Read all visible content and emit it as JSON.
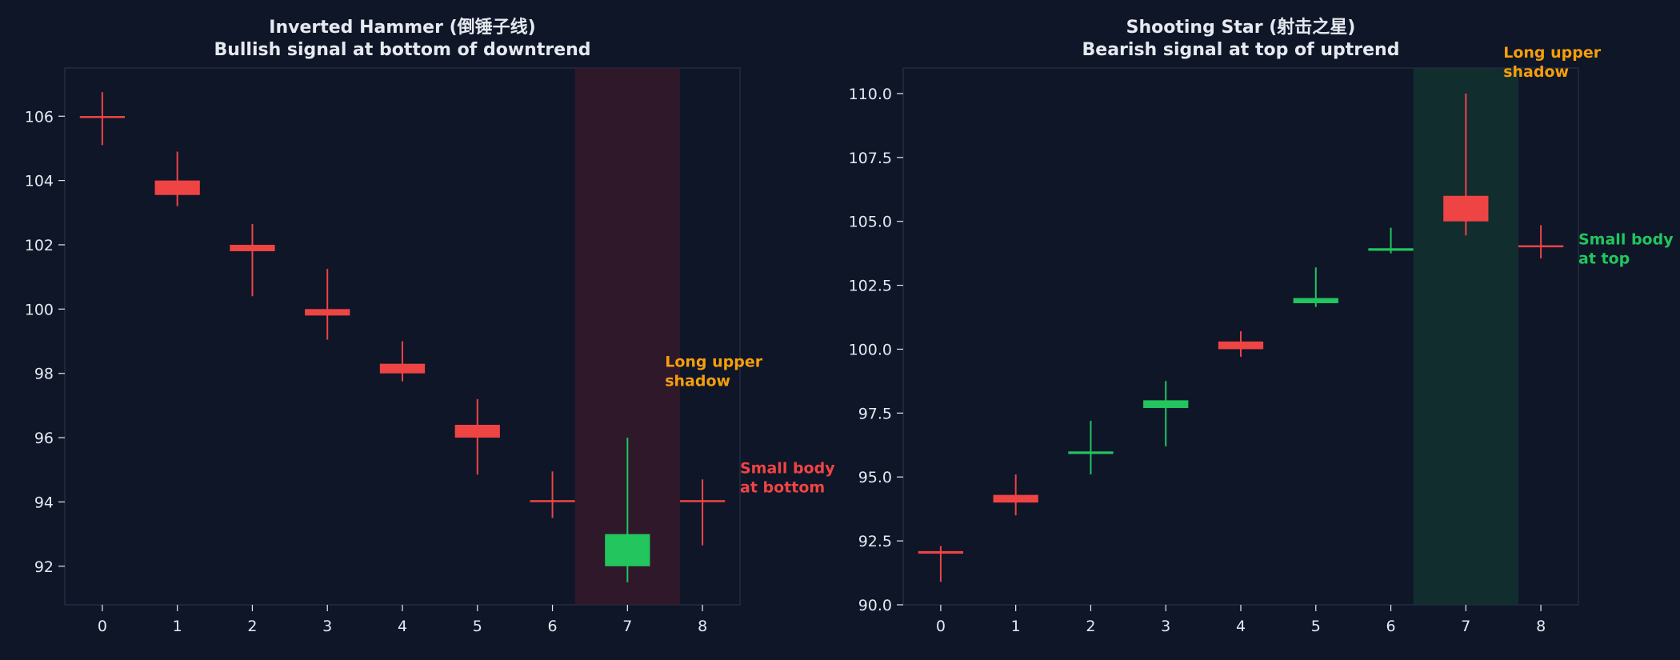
{
  "colors": {
    "background": "#0e1628",
    "axes_border": "#2a3550",
    "tick_text": "#e6e9f0",
    "title_text": "#e6e9f0",
    "bull": "#22c55e",
    "bear": "#ef4444",
    "annotation_orange": "#f59e0b",
    "highlight_left": "#3a1a2a",
    "highlight_right": "#143530"
  },
  "chart_data": [
    {
      "type": "candlestick",
      "title": "Inverted Hammer (倒锤子线)",
      "subtitle": "Bullish signal at bottom of downtrend",
      "xlabel": "",
      "ylabel": "",
      "xlim": [
        -0.5,
        8.5
      ],
      "ylim": [
        90.8,
        107.5
      ],
      "xticks": [
        0,
        1,
        2,
        3,
        4,
        5,
        6,
        7,
        8
      ],
      "xtick_labels": [
        "0",
        "1",
        "2",
        "3",
        "4",
        "5",
        "6",
        "7",
        "8"
      ],
      "yticks": [
        92,
        94,
        96,
        98,
        100,
        102,
        104,
        106
      ],
      "ytick_labels": [
        "92",
        "94",
        "96",
        "98",
        "100",
        "102",
        "104",
        "106"
      ],
      "grid": false,
      "highlight": {
        "x_start": 6.3,
        "x_end": 7.7,
        "color_key": "highlight_left"
      },
      "candles": [
        {
          "x": 0,
          "open": 106.0,
          "close": 105.95,
          "high": 106.75,
          "low": 105.1
        },
        {
          "x": 1,
          "open": 104.0,
          "close": 103.55,
          "high": 104.9,
          "low": 103.2
        },
        {
          "x": 2,
          "open": 102.0,
          "close": 101.8,
          "high": 102.65,
          "low": 100.4
        },
        {
          "x": 3,
          "open": 100.0,
          "close": 99.8,
          "high": 101.25,
          "low": 99.05
        },
        {
          "x": 4,
          "open": 98.3,
          "close": 98.0,
          "high": 99.0,
          "low": 97.75
        },
        {
          "x": 5,
          "open": 96.4,
          "close": 96.0,
          "high": 97.2,
          "low": 94.85
        },
        {
          "x": 6,
          "open": 94.05,
          "close": 94.0,
          "high": 94.95,
          "low": 93.5
        },
        {
          "x": 7,
          "open": 92.0,
          "close": 93.0,
          "high": 96.0,
          "low": 91.5
        },
        {
          "x": 8,
          "open": 94.05,
          "close": 94.0,
          "high": 94.7,
          "low": 92.65
        }
      ],
      "annotations": [
        {
          "lines": [
            "Long upper",
            "shadow"
          ],
          "x": 7.5,
          "y": 98.2,
          "color_key": "annotation_orange"
        },
        {
          "lines": [
            "Small body",
            "at bottom"
          ],
          "x": 8.5,
          "y": 94.9,
          "color_key": "bear"
        }
      ]
    },
    {
      "type": "candlestick",
      "title": "Shooting Star (射击之星)",
      "subtitle": "Bearish signal at top of uptrend",
      "xlabel": "",
      "ylabel": "",
      "xlim": [
        -0.5,
        8.5
      ],
      "ylim": [
        90.0,
        111.0
      ],
      "xticks": [
        0,
        1,
        2,
        3,
        4,
        5,
        6,
        7,
        8
      ],
      "xtick_labels": [
        "0",
        "1",
        "2",
        "3",
        "4",
        "5",
        "6",
        "7",
        "8"
      ],
      "yticks": [
        90.0,
        92.5,
        95.0,
        97.5,
        100.0,
        102.5,
        105.0,
        107.5,
        110.0
      ],
      "ytick_labels": [
        "90.0",
        "92.5",
        "95.0",
        "97.5",
        "100.0",
        "102.5",
        "105.0",
        "107.5",
        "110.0"
      ],
      "grid": false,
      "highlight": {
        "x_start": 6.3,
        "x_end": 7.7,
        "color_key": "highlight_right"
      },
      "candles": [
        {
          "x": 0,
          "open": 92.1,
          "close": 92.0,
          "high": 92.3,
          "low": 90.9
        },
        {
          "x": 1,
          "open": 94.3,
          "close": 94.0,
          "high": 95.1,
          "low": 93.5
        },
        {
          "x": 2,
          "open": 95.9,
          "close": 96.0,
          "high": 97.2,
          "low": 95.1
        },
        {
          "x": 3,
          "open": 97.7,
          "close": 98.0,
          "high": 98.75,
          "low": 96.2
        },
        {
          "x": 4,
          "open": 100.3,
          "close": 100.0,
          "high": 100.7,
          "low": 99.7
        },
        {
          "x": 5,
          "open": 101.8,
          "close": 102.0,
          "high": 103.2,
          "low": 101.65
        },
        {
          "x": 6,
          "open": 103.85,
          "close": 103.95,
          "high": 104.75,
          "low": 103.75
        },
        {
          "x": 7,
          "open": 106.0,
          "close": 105.0,
          "high": 110.0,
          "low": 104.45
        },
        {
          "x": 8,
          "open": 104.05,
          "close": 104.0,
          "high": 104.85,
          "low": 103.55
        }
      ],
      "annotations": [
        {
          "lines": [
            "Long upper",
            "shadow"
          ],
          "x": 7.5,
          "y": 111.4,
          "color_key": "annotation_orange"
        },
        {
          "lines": [
            "Small body",
            "at top"
          ],
          "x": 8.5,
          "y": 104.1,
          "color_key": "bull"
        }
      ]
    }
  ]
}
